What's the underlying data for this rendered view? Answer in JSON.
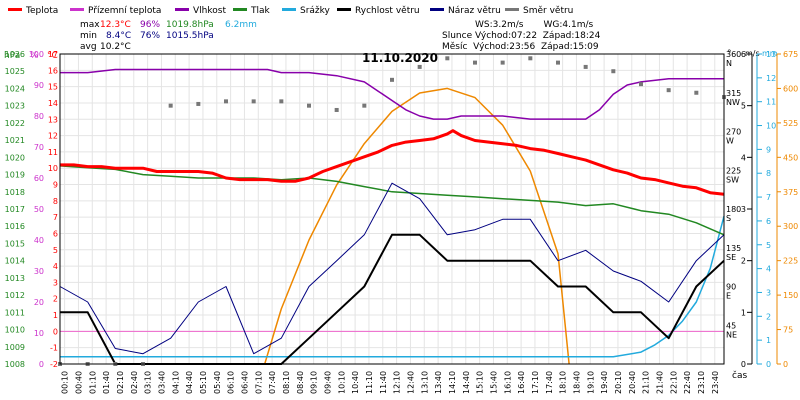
{
  "chart_data": {
    "type": "line",
    "title": "11.10.2020",
    "x_label": "čas",
    "x_ticks": [
      "00:10",
      "00:40",
      "01:10",
      "01:40",
      "02:10",
      "02:40",
      "03:10",
      "03:40",
      "04:10",
      "04:40",
      "05:10",
      "05:40",
      "06:10",
      "06:40",
      "07:10",
      "07:40",
      "08:10",
      "08:40",
      "09:10",
      "09:40",
      "10:10",
      "10:40",
      "11:10",
      "11:40",
      "12:10",
      "12:40",
      "13:10",
      "13:40",
      "14:10",
      "14:40",
      "15:10",
      "15:40",
      "16:10",
      "16:40",
      "17:10",
      "17:40",
      "18:10",
      "18:40",
      "19:10",
      "19:40",
      "20:10",
      "20:40",
      "21:10",
      "21:40",
      "22:10",
      "22:40",
      "23:10",
      "23:40"
    ],
    "legend": [
      {
        "name": "Teplota",
        "color": "#ff0000"
      },
      {
        "name": "Přízemní teplota",
        "color": "#cc33cc"
      },
      {
        "name": "Vlhkost",
        "color": "#8800aa"
      },
      {
        "name": "Tlak",
        "color": "#228822"
      },
      {
        "name": "Srážky",
        "color": "#22aadd"
      },
      {
        "name": "Rychlost větru",
        "color": "#000000"
      },
      {
        "name": "Náraz větru",
        "color": "#000080"
      },
      {
        "name": "Směr větru",
        "color": "#777777"
      }
    ],
    "summary": {
      "labels": [
        "max",
        "min",
        "avg"
      ],
      "max_values": [
        "12.3°C",
        "96%",
        "1019.8hPa",
        "6.2mm"
      ],
      "min_values": [
        "8.4°C",
        "76%",
        "1015.5hPa"
      ],
      "avg_values": [
        "10.2°C"
      ]
    },
    "info": {
      "line1": "WS:3.2m/s       WG:4.1m/s",
      "line2": "Slunce Východ:07:22  Západ:18:24",
      "line3": "Měsíc  Východ:23:56  Západ:15:09"
    },
    "axes_left": {
      "hpa_label": "hPa",
      "hpa_ticks": [
        "1008",
        "1009",
        "1010",
        "1011",
        "1012",
        "1013",
        "1014",
        "1015",
        "1016",
        "1017",
        "1018",
        "1019",
        "1020",
        "1021",
        "1022",
        "1023",
        "1024",
        "1025",
        "1026"
      ],
      "pct_label": "%",
      "pct_ticks": [
        "0",
        "10",
        "20",
        "30",
        "40",
        "50",
        "60",
        "70",
        "80",
        "90",
        "100"
      ],
      "temp_label": "°C",
      "temp_ticks": [
        "-2",
        "-1",
        "0",
        "1",
        "2",
        "3",
        "4",
        "5",
        "6",
        "7",
        "8",
        "9",
        "10",
        "11",
        "12",
        "13",
        "14",
        "15",
        "16",
        "17"
      ]
    },
    "axes_right": {
      "deg_label": "°",
      "dir_ticks": [
        {
          "deg": "45",
          "dir": "NE"
        },
        {
          "deg": "90",
          "dir": "E"
        },
        {
          "deg": "135",
          "dir": "SE"
        },
        {
          "deg": "180",
          "dir": "S"
        },
        {
          "deg": "225",
          "dir": "SW"
        },
        {
          "deg": "270",
          "dir": "W"
        },
        {
          "deg": "315",
          "dir": "NW"
        },
        {
          "deg": "360",
          "dir": "N"
        }
      ],
      "ms_label": "m/s",
      "ms_ticks": [
        "0",
        "1",
        "2",
        "3",
        "4",
        "5",
        "6"
      ],
      "mm_label": "mm",
      "mm_ticks": [
        "0",
        "1",
        "2",
        "3",
        "4",
        "5",
        "6",
        "7",
        "8",
        "9",
        "10",
        "11",
        "12",
        "13"
      ],
      "solar_ticks": [
        "0",
        "75",
        "150",
        "225",
        "300",
        "375",
        "450",
        "525",
        "600",
        "675"
      ]
    },
    "series": {
      "temperature_c": {
        "x": [
          0,
          0.5,
          1,
          1.5,
          2,
          2.5,
          3,
          3.5,
          4,
          4.5,
          5,
          5.5,
          6,
          6.5,
          7,
          7.5,
          8,
          8.5,
          9,
          9.5,
          10,
          10.5,
          11,
          11.5,
          12,
          12.5,
          13,
          13.5,
          14,
          14.2,
          14.5,
          15,
          15.5,
          16,
          16.5,
          17,
          17.5,
          18,
          18.5,
          19,
          19.5,
          20,
          20.5,
          21,
          21.5,
          22,
          22.5,
          23,
          23.5,
          24
        ],
        "y": [
          10.2,
          10.2,
          10.1,
          10.1,
          10.0,
          10.0,
          10.0,
          9.8,
          9.8,
          9.8,
          9.8,
          9.7,
          9.4,
          9.3,
          9.3,
          9.3,
          9.2,
          9.2,
          9.4,
          9.8,
          10.1,
          10.4,
          10.7,
          11.0,
          11.4,
          11.6,
          11.7,
          11.8,
          12.1,
          12.3,
          12.0,
          11.7,
          11.6,
          11.5,
          11.4,
          11.2,
          11.1,
          10.9,
          10.7,
          10.5,
          10.2,
          9.9,
          9.7,
          9.4,
          9.3,
          9.1,
          8.9,
          8.8,
          8.5,
          8.4
        ]
      },
      "ground_temp_c": {
        "x": [],
        "y": []
      },
      "humidity_pct": {
        "x": [
          0,
          1,
          2,
          3,
          4,
          5,
          6,
          7,
          7.5,
          8,
          9,
          10,
          11,
          11.5,
          12,
          12.5,
          13,
          13.5,
          14,
          14.5,
          15,
          16,
          17,
          18,
          19,
          19.5,
          20,
          20.5,
          21,
          22,
          23,
          24
        ],
        "y": [
          94,
          94,
          95,
          95,
          95,
          95,
          95,
          95,
          95,
          94,
          94,
          93,
          91,
          88,
          85,
          82,
          80,
          79,
          79,
          80,
          80,
          80,
          79,
          79,
          79,
          82,
          87,
          90,
          91,
          92,
          92,
          92
        ]
      },
      "pressure_hpa": {
        "x": [
          0,
          1,
          2,
          3,
          4,
          5,
          6,
          7,
          8,
          9,
          10,
          11,
          12,
          13,
          14,
          15,
          16,
          17,
          18,
          19,
          20,
          21,
          22,
          23,
          24
        ],
        "y": [
          1019.5,
          1019.4,
          1019.3,
          1019.0,
          1018.9,
          1018.8,
          1018.8,
          1018.8,
          1018.7,
          1018.8,
          1018.6,
          1018.3,
          1018.0,
          1017.9,
          1017.8,
          1017.7,
          1017.6,
          1017.5,
          1017.4,
          1017.2,
          1017.3,
          1016.9,
          1016.7,
          1016.2,
          1015.5
        ]
      },
      "precipitation_mm": {
        "x": [
          0,
          2,
          4,
          6,
          8,
          10,
          12,
          14,
          15,
          16,
          17,
          18,
          19,
          20,
          21,
          21.5,
          22,
          22.5,
          23,
          23.5,
          24
        ],
        "y": [
          0.3,
          0.3,
          0.3,
          0.3,
          0.3,
          0.3,
          0.3,
          0.3,
          0.3,
          0.3,
          0.3,
          0.3,
          0.3,
          0.3,
          0.5,
          0.8,
          1.2,
          1.8,
          2.6,
          4.0,
          6.2
        ]
      },
      "solar_radiation": {
        "x": [
          7.4,
          8,
          9,
          10,
          11,
          12,
          13,
          14,
          15,
          16,
          17,
          18,
          18.4
        ],
        "y": [
          0,
          120,
          270,
          390,
          480,
          550,
          590,
          600,
          580,
          520,
          420,
          240,
          0
        ]
      },
      "wind_speed_ms": {
        "x": [
          0,
          1,
          2,
          3,
          4,
          5,
          6,
          7,
          8,
          9,
          10,
          11,
          12,
          13,
          14,
          15,
          16,
          17,
          18,
          19,
          20,
          21,
          22,
          23,
          24
        ],
        "y": [
          1.0,
          1.0,
          0.0,
          0.0,
          0.0,
          0.0,
          0.0,
          0.0,
          0.0,
          0.5,
          1.0,
          1.5,
          2.5,
          2.5,
          2.0,
          2.0,
          2.0,
          2.0,
          1.5,
          1.5,
          1.0,
          1.0,
          0.5,
          1.5,
          2.0
        ]
      },
      "wind_gust_ms": {
        "x": [
          0,
          1,
          2,
          3,
          4,
          5,
          6,
          7,
          8,
          9,
          10,
          11,
          12,
          13,
          14,
          15,
          16,
          17,
          18,
          19,
          20,
          21,
          22,
          23,
          24
        ],
        "y": [
          1.5,
          1.2,
          0.3,
          0.2,
          0.5,
          1.2,
          1.5,
          0.2,
          0.5,
          1.5,
          2.0,
          2.5,
          3.5,
          3.2,
          2.5,
          2.6,
          2.8,
          2.8,
          2.0,
          2.2,
          1.8,
          1.6,
          1.2,
          2.0,
          2.5
        ]
      },
      "wind_direction_deg": {
        "x": [
          0,
          1,
          2,
          3,
          4,
          5,
          6,
          7,
          8,
          9,
          10,
          11,
          12,
          13,
          14,
          15,
          16,
          17,
          18,
          19,
          20,
          21,
          22,
          23,
          24
        ],
        "y": [
          0,
          0,
          0,
          0,
          300,
          302,
          305,
          305,
          305,
          300,
          295,
          300,
          330,
          345,
          355,
          350,
          350,
          355,
          350,
          345,
          340,
          325,
          318,
          315,
          310
        ]
      }
    }
  }
}
